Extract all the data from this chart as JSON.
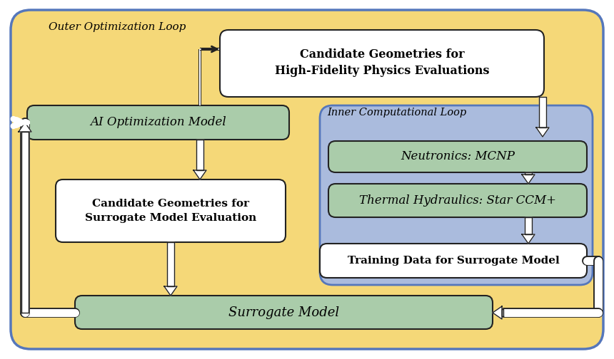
{
  "bg_outer": "#F5D878",
  "bg_inner_loop": "#AABBDD",
  "box_white": "#FFFFFF",
  "box_green": "#AACCAA",
  "border_outer": "#5577BB",
  "border_dark": "#222222",
  "border_green": "#557755",
  "outer_label": "Outer Optimization Loop",
  "inner_label": "Inner Computational Loop",
  "box_candidate_hf": "Candidate Geometries for\nHigh-Fidelity Physics Evaluations",
  "box_ai": "AI Optimization Model",
  "box_candidate_surr": "Candidate Geometries for\nSurrogate Model Evaluation",
  "box_neutronics": "Neutronics: MCNP",
  "box_thermal": "Thermal Hydraulics: Star CCM+",
  "box_training": "Training Data for Surrogate Model",
  "box_surrogate": "Surrogate Model",
  "figw": 8.6,
  "figh": 5.04,
  "dpi": 100
}
